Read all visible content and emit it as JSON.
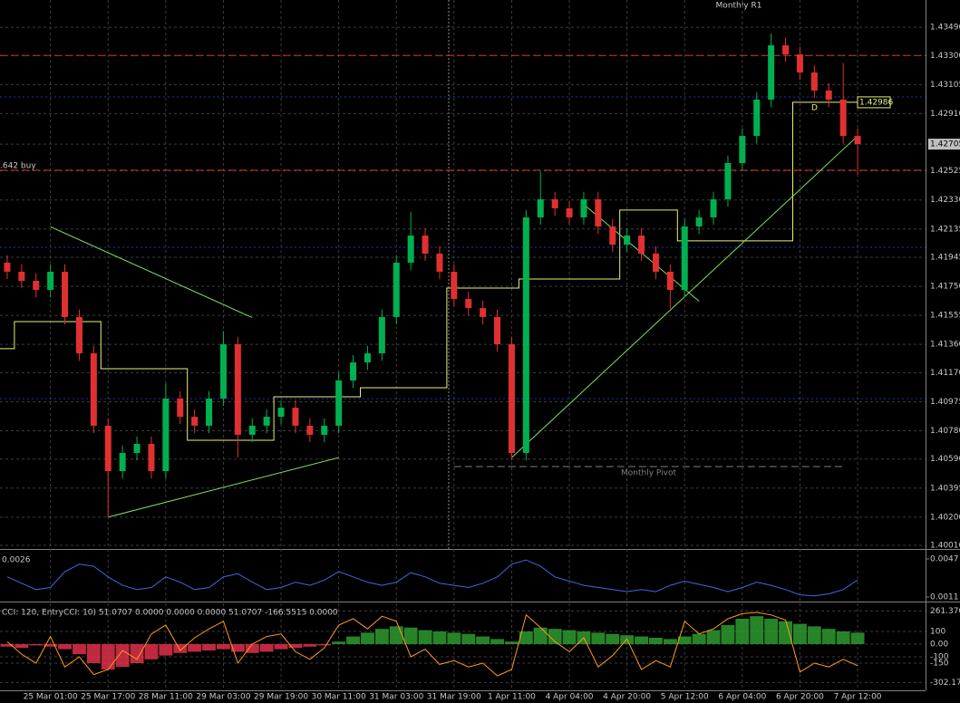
{
  "chart_data": [
    {
      "type": "candlestick",
      "categories": [
        null,
        null,
        null,
        "25 Mar 01:00",
        null,
        null,
        null,
        "25 Mar 17:00",
        null,
        null,
        null,
        "28 Mar 11:00",
        null,
        null,
        null,
        "29 Mar 03:00",
        null,
        null,
        null,
        "29 Mar 19:00",
        null,
        null,
        null,
        "30 Mar 11:00",
        null,
        null,
        null,
        "31 Mar 03:00",
        null,
        null,
        null,
        "31 Mar 19:00",
        null,
        null,
        null,
        "1 Apr 11:00",
        null,
        null,
        null,
        "4 Apr 04:00",
        null,
        null,
        null,
        "4 Apr 20:00",
        null,
        null,
        null,
        "5 Apr 12:00",
        null,
        null,
        null,
        "6 Apr 04:00",
        null,
        null,
        null,
        "6 Apr 20:00",
        null,
        null,
        null,
        "7 Apr 12:00"
      ],
      "open": [
        1.41909,
        1.41848,
        1.41787,
        1.41726,
        1.41848,
        1.41544,
        1.413,
        1.40814,
        1.40509,
        1.40631,
        1.40692,
        1.40509,
        1.40996,
        1.40874,
        1.40814,
        1.40996,
        1.41361,
        1.40753,
        1.40814,
        1.40874,
        1.40935,
        1.40814,
        1.40753,
        1.40814,
        1.41118,
        1.41239,
        1.413,
        1.41544,
        1.41909,
        1.42091,
        1.4197,
        1.41848,
        1.41665,
        1.41604,
        1.41544,
        1.41361,
        1.40631,
        1.42213,
        1.42335,
        1.42274,
        1.42213,
        1.42335,
        1.42152,
        1.4203,
        1.42091,
        1.4197,
        1.41848,
        1.41726,
        1.42152,
        1.42213,
        1.42335,
        1.42578,
        1.4276,
        1.43004,
        1.43369,
        1.43308,
        1.43186,
        1.43065,
        1.43004,
        1.4276
      ],
      "high": [
        1.41959,
        1.41898,
        1.41837,
        1.41898,
        1.41898,
        1.41594,
        1.4135,
        1.40864,
        1.40681,
        1.40742,
        1.40742,
        1.411,
        1.41046,
        1.40924,
        1.41046,
        1.4145,
        1.41411,
        1.40864,
        1.40924,
        1.40985,
        1.40985,
        1.40864,
        1.40864,
        1.41168,
        1.41289,
        1.4135,
        1.41594,
        1.41959,
        1.4225,
        1.42141,
        1.4202,
        1.41898,
        1.41715,
        1.41654,
        1.41594,
        1.41411,
        1.42263,
        1.4252,
        1.42385,
        1.42324,
        1.42385,
        1.42385,
        1.42202,
        1.42141,
        1.42141,
        1.4202,
        1.41898,
        1.42202,
        1.42263,
        1.42385,
        1.42628,
        1.4281,
        1.43054,
        1.4345,
        1.43419,
        1.43358,
        1.43236,
        1.43115,
        1.4325,
        1.4281
      ],
      "low": [
        1.41798,
        1.41737,
        1.41676,
        1.41676,
        1.41494,
        1.4125,
        1.40764,
        1.402,
        1.40459,
        1.40581,
        1.40459,
        1.40459,
        1.40824,
        1.40764,
        1.40764,
        1.40946,
        1.406,
        1.40703,
        1.40764,
        1.40824,
        1.40764,
        1.40703,
        1.40703,
        1.40764,
        1.41068,
        1.41189,
        1.4125,
        1.41494,
        1.41859,
        1.4192,
        1.41798,
        1.41615,
        1.41554,
        1.41494,
        1.41311,
        1.40581,
        1.40581,
        1.42163,
        1.42224,
        1.42163,
        1.42163,
        1.42102,
        1.4198,
        1.4198,
        1.4192,
        1.41798,
        1.416,
        1.41676,
        1.42102,
        1.42163,
        1.42285,
        1.42528,
        1.4271,
        1.42954,
        1.43258,
        1.43136,
        1.43015,
        1.42954,
        1.4271,
        1.425
      ],
      "close": [
        1.41848,
        1.41787,
        1.41726,
        1.41848,
        1.41544,
        1.413,
        1.40814,
        1.40509,
        1.40631,
        1.40692,
        1.40509,
        1.40996,
        1.40874,
        1.40814,
        1.40996,
        1.41361,
        1.40753,
        1.40814,
        1.40874,
        1.40935,
        1.40814,
        1.40753,
        1.40814,
        1.41118,
        1.41239,
        1.413,
        1.41544,
        1.41909,
        1.42091,
        1.4197,
        1.41848,
        1.41665,
        1.41604,
        1.41544,
        1.41361,
        1.40631,
        1.42213,
        1.42335,
        1.42274,
        1.42213,
        1.42335,
        1.42152,
        1.4203,
        1.42091,
        1.4197,
        1.41848,
        1.41726,
        1.42152,
        1.42213,
        1.42335,
        1.42578,
        1.4276,
        1.43004,
        1.43369,
        1.43308,
        1.43186,
        1.43065,
        1.43004,
        1.4276,
        1.42705
      ],
      "up_color": "#00b050",
      "down_color": "#e03030",
      "step_values": [
        1.41331,
        1.41513,
        1.41513,
        1.41513,
        1.41513,
        1.41513,
        1.41513,
        1.41197,
        1.41197,
        1.41197,
        1.41197,
        1.41197,
        1.41197,
        1.40716,
        1.40716,
        1.40716,
        1.40716,
        1.40716,
        1.40716,
        1.41008,
        1.41008,
        1.41008,
        1.41008,
        1.41008,
        1.41008,
        1.41069,
        1.41069,
        1.41069,
        1.41069,
        1.41069,
        1.41069,
        1.41738,
        1.41738,
        1.41738,
        1.41738,
        1.41738,
        1.41799,
        1.41799,
        1.41799,
        1.41799,
        1.41799,
        1.41799,
        1.41799,
        1.42262,
        1.42262,
        1.42262,
        1.42262,
        1.42055,
        1.42055,
        1.42055,
        1.42055,
        1.42055,
        1.42055,
        1.42055,
        1.42055,
        1.42986,
        1.42986,
        1.42986,
        1.42986,
        1.42986
      ],
      "step_color": "#e8f07a",
      "step_label": "1.42986",
      "trendlines": [
        {
          "x": [
            7,
            23
          ],
          "y": [
            1.402,
            1.406
          ]
        },
        {
          "x": [
            35,
            59
          ],
          "y": [
            1.406,
            1.4276
          ]
        },
        {
          "x": [
            3,
            17
          ],
          "y": [
            1.4215,
            1.4154
          ]
        },
        {
          "x": [
            40,
            48
          ],
          "y": [
            1.423,
            1.4165
          ]
        }
      ],
      "trend_color": "#7ee05a",
      "levels": [
        {
          "value": 1.433,
          "color": "#d03030",
          "style": "dash"
        },
        {
          "value": 1.4253,
          "color": "#d03030",
          "style": "dash"
        },
        {
          "value": 1.43022,
          "color": "#2030c0",
          "style": "dot"
        },
        {
          "value": 1.42012,
          "color": "#2030c0",
          "style": "dot"
        },
        {
          "value": 1.40996,
          "color": "#2030c0",
          "style": "dot"
        },
        {
          "value": 1.4054,
          "color": "#808080",
          "style": "dash",
          "start": 31,
          "label": "Monthly Pivot"
        }
      ],
      "annotations": [
        "Monthly R1",
        ".642 buy",
        "D"
      ],
      "ylim": [
        1.39986,
        1.43673
      ],
      "yticks": [
        {
          "value": 1.4349,
          "label": "1.43490"
        },
        {
          "value": 1.433,
          "label": "1.43300"
        },
        1.43105,
        {
          "value": 1.4291,
          "label": "1.42910"
        },
        1.42705,
        1.42525,
        {
          "value": 1.4233,
          "label": "1.42330"
        },
        1.42135,
        1.41945,
        {
          "value": 1.4175,
          "label": "1.41750"
        },
        1.41555,
        {
          "value": 1.4136,
          "label": "1.41360"
        },
        {
          "value": 1.4117,
          "label": "1.41170"
        },
        1.40975,
        {
          "value": 1.4078,
          "label": "1.40780"
        },
        {
          "value": 1.4059,
          "label": "1.40590"
        },
        1.40395,
        {
          "value": 1.402,
          "label": "1.40200"
        },
        {
          "value": 1.4001,
          "label": "1.40010"
        }
      ],
      "grid": true
    },
    {
      "type": "line",
      "label": "0.0026",
      "color": "#3a6be0",
      "values": [
        0.003,
        0.0024,
        0.0018,
        0.002,
        0.0035,
        0.0042,
        0.004,
        0.003,
        0.0022,
        0.0018,
        0.002,
        0.003,
        0.0025,
        0.0018,
        0.002,
        0.003,
        0.0033,
        0.0025,
        0.0018,
        0.002,
        0.0025,
        0.0022,
        0.0027,
        0.0035,
        0.003,
        0.0025,
        0.0022,
        0.0025,
        0.0034,
        0.003,
        0.0024,
        0.0022,
        0.002,
        0.0024,
        0.003,
        0.0042,
        0.0046,
        0.004,
        0.003,
        0.0026,
        0.0022,
        0.002,
        0.0018,
        0.0016,
        0.0018,
        0.0016,
        0.0022,
        0.0026,
        0.0023,
        0.002,
        0.0016,
        0.002,
        0.0025,
        0.0022,
        0.0018,
        0.0013,
        0.0012,
        0.0014,
        0.0018,
        0.0027
      ],
      "ylim": [
        0.00067,
        0.00547
      ],
      "yticks": [
        0.0047,
        0.0011
      ],
      "grid": false
    },
    {
      "type": "combo",
      "label": "CCI: 120, EntryCCI: 10)  51.0707 0.0000 0.0000 0.0000 51.0707 -166.5515 0.0000",
      "series": [
        {
          "type": "bar",
          "up_color": "#2e9a2e",
          "down_color": "#e0304a",
          "values": [
            -20,
            -30,
            -10,
            -20,
            -40,
            -80,
            -150,
            -200,
            -180,
            -150,
            -120,
            -90,
            -70,
            -60,
            -50,
            -40,
            -60,
            -70,
            -60,
            -40,
            -30,
            -20,
            -10,
            20,
            60,
            90,
            120,
            140,
            130,
            110,
            100,
            90,
            80,
            60,
            40,
            20,
            100,
            130,
            120,
            110,
            100,
            90,
            80,
            70,
            60,
            50,
            40,
            60,
            80,
            110,
            150,
            200,
            220,
            200,
            180,
            160,
            140,
            120,
            100,
            90
          ]
        },
        {
          "type": "line",
          "color": "#ff9a1a",
          "values": [
            20,
            -80,
            -150,
            60,
            -180,
            -100,
            -240,
            -200,
            -50,
            -120,
            80,
            150,
            -50,
            50,
            120,
            180,
            -150,
            0,
            60,
            80,
            -60,
            -120,
            -30,
            150,
            200,
            120,
            220,
            180,
            -100,
            -40,
            -160,
            -130,
            -180,
            -150,
            -250,
            -200,
            230,
            130,
            20,
            -60,
            50,
            -180,
            -90,
            40,
            -200,
            -130,
            -180,
            180,
            80,
            120,
            200,
            240,
            250,
            230,
            190,
            -220,
            -150,
            -180,
            -120,
            -170
          ]
        }
      ],
      "ylim": [
        -364,
        321
      ],
      "yticks": [
        {
          "value": 261.37,
          "label": "261.370"
        },
        100,
        {
          "value": 0,
          "label": "0.00"
        },
        -100,
        -150,
        -302.17
      ],
      "grid": true
    }
  ]
}
